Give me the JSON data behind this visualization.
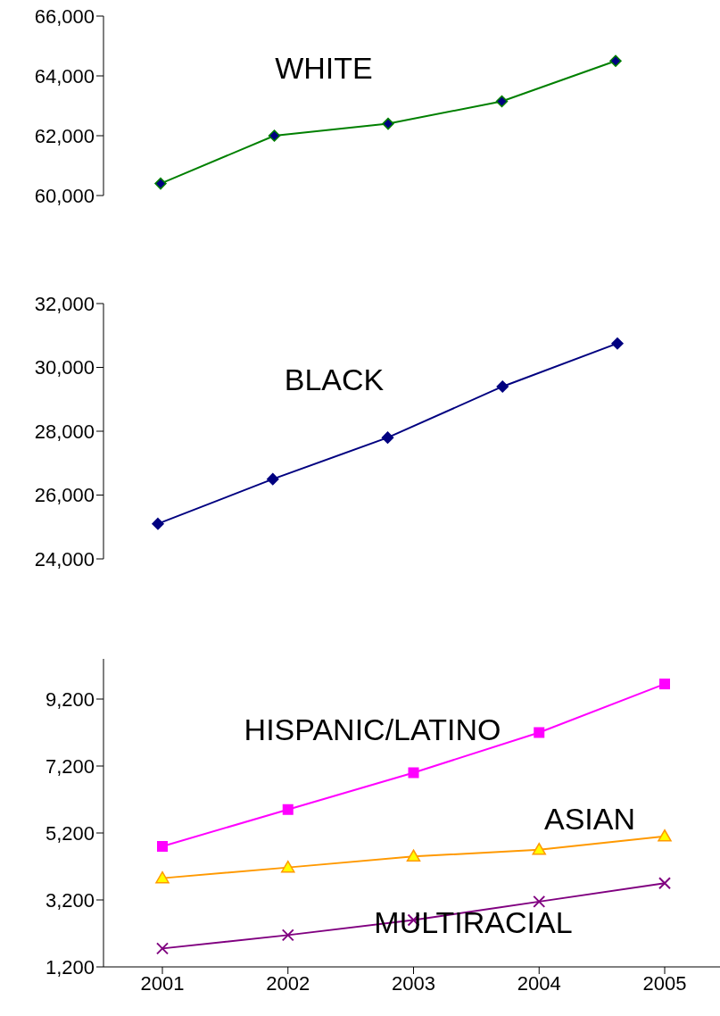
{
  "chart_data": [
    {
      "type": "line",
      "categories": [
        null,
        null,
        null,
        null,
        null
      ],
      "tick_labels": "y",
      "ylim": [
        60000,
        66000
      ],
      "yticks": [
        {
          "value": 60000,
          "label": "60,000"
        },
        {
          "value": 62000,
          "label": "62,000"
        },
        {
          "value": 64000,
          "label": "64,000"
        },
        {
          "value": 66000,
          "label": "66,000"
        }
      ],
      "marker": "diamond",
      "series": [
        {
          "name": "WHITE",
          "color": "#008000",
          "values": [
            60400,
            62000,
            62400,
            63150,
            64500
          ]
        }
      ]
    },
    {
      "type": "line",
      "categories": [
        null,
        null,
        null,
        null,
        null
      ],
      "tick_labels": "y",
      "ylim": [
        24000,
        32000
      ],
      "yticks": [
        {
          "value": 24000,
          "label": "24,000"
        },
        {
          "value": 26000,
          "label": "26,000"
        },
        {
          "value": 28000,
          "label": "28,000"
        },
        {
          "value": 30000,
          "label": "30,000"
        },
        {
          "value": 32000,
          "label": "32,000"
        }
      ],
      "marker": "diamond",
      "series": [
        {
          "name": "BLACK",
          "color": "#000080",
          "values": [
            25100,
            26500,
            27800,
            29400,
            30750
          ]
        }
      ]
    },
    {
      "type": "line",
      "categories": [
        "2001",
        "2002",
        "2003",
        "2004",
        "2005"
      ],
      "ylim": [
        1200,
        10400
      ],
      "yticks": [
        {
          "value": 1200,
          "label": "1,200"
        },
        {
          "value": 3200,
          "label": "3,200"
        },
        {
          "value": 5200,
          "label": "5,200"
        },
        {
          "value": 7200,
          "label": "7,200"
        },
        {
          "value": 9200,
          "label": "9,200"
        }
      ],
      "series": [
        {
          "name": "HISPANIC/LATINO",
          "color": "#ff00ff",
          "marker": "square",
          "values": [
            4800,
            5900,
            7000,
            8200,
            9650
          ]
        },
        {
          "name": "ASIAN",
          "color": "#ff9900",
          "marker": "triangle",
          "values": [
            3850,
            4170,
            4500,
            4700,
            5100
          ]
        },
        {
          "name": "MULTIRACIAL",
          "color": "#800080",
          "marker": "cross",
          "values": [
            1750,
            2150,
            2600,
            3150,
            3700
          ]
        }
      ]
    }
  ]
}
